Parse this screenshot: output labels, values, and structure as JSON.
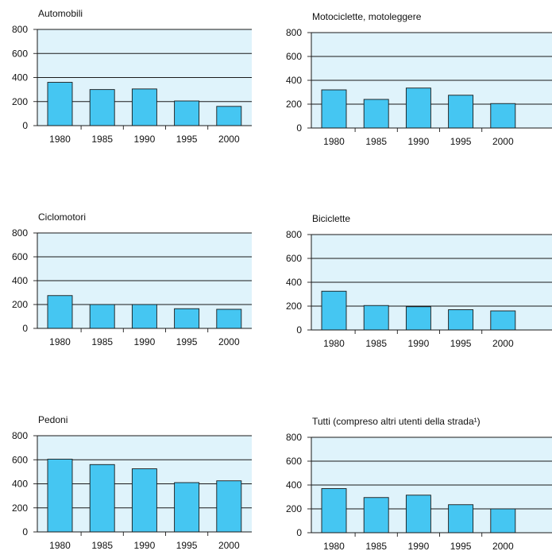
{
  "colors": {
    "panel_background": "#dff3fb",
    "bar_fill": "#45c6f2",
    "bar_stroke": "#1a1a1a",
    "gridline": "#1a1a1a"
  },
  "chart_data": [
    {
      "type": "bar",
      "title": "Automobili",
      "categories": [
        "1980",
        "1985",
        "1990",
        "1995",
        "2000"
      ],
      "values": [
        360,
        300,
        305,
        205,
        160
      ],
      "yticks": [
        "0",
        "200",
        "400",
        "600",
        "800"
      ],
      "ylim": [
        0,
        800
      ],
      "grid": true
    },
    {
      "type": "bar",
      "title": "Motociclette, motoleggere",
      "categories": [
        "1980",
        "1985",
        "1990",
        "1995",
        "2000"
      ],
      "values": [
        320,
        240,
        335,
        275,
        205
      ],
      "yticks": [
        "0",
        "200",
        "400",
        "600",
        "800"
      ],
      "ylim": [
        0,
        800
      ],
      "grid": true
    },
    {
      "type": "bar",
      "title": "Ciclomotori",
      "categories": [
        "1980",
        "1985",
        "1990",
        "1995",
        "2000"
      ],
      "values": [
        275,
        200,
        200,
        165,
        160
      ],
      "yticks": [
        "0",
        "200",
        "400",
        "600",
        "800"
      ],
      "ylim": [
        0,
        800
      ],
      "grid": true
    },
    {
      "type": "bar",
      "title": "Biciclette",
      "categories": [
        "1980",
        "1985",
        "1990",
        "1995",
        "2000"
      ],
      "values": [
        325,
        205,
        195,
        170,
        160
      ],
      "yticks": [
        "0",
        "200",
        "400",
        "600",
        "800"
      ],
      "ylim": [
        0,
        800
      ],
      "grid": true
    },
    {
      "type": "bar",
      "title": "Pedoni",
      "categories": [
        "1980",
        "1985",
        "1990",
        "1995",
        "2000"
      ],
      "values": [
        605,
        560,
        525,
        410,
        425
      ],
      "yticks": [
        "0",
        "200",
        "400",
        "600",
        "800"
      ],
      "ylim": [
        0,
        800
      ],
      "grid": true
    },
    {
      "type": "bar",
      "title": "Tutti (compreso altri utenti della strada¹)",
      "categories": [
        "1980",
        "1985",
        "1990",
        "1995",
        "2000"
      ],
      "values": [
        370,
        295,
        315,
        235,
        200
      ],
      "yticks": [
        "0",
        "200",
        "400",
        "600",
        "800"
      ],
      "ylim": [
        0,
        800
      ],
      "grid": true
    }
  ]
}
